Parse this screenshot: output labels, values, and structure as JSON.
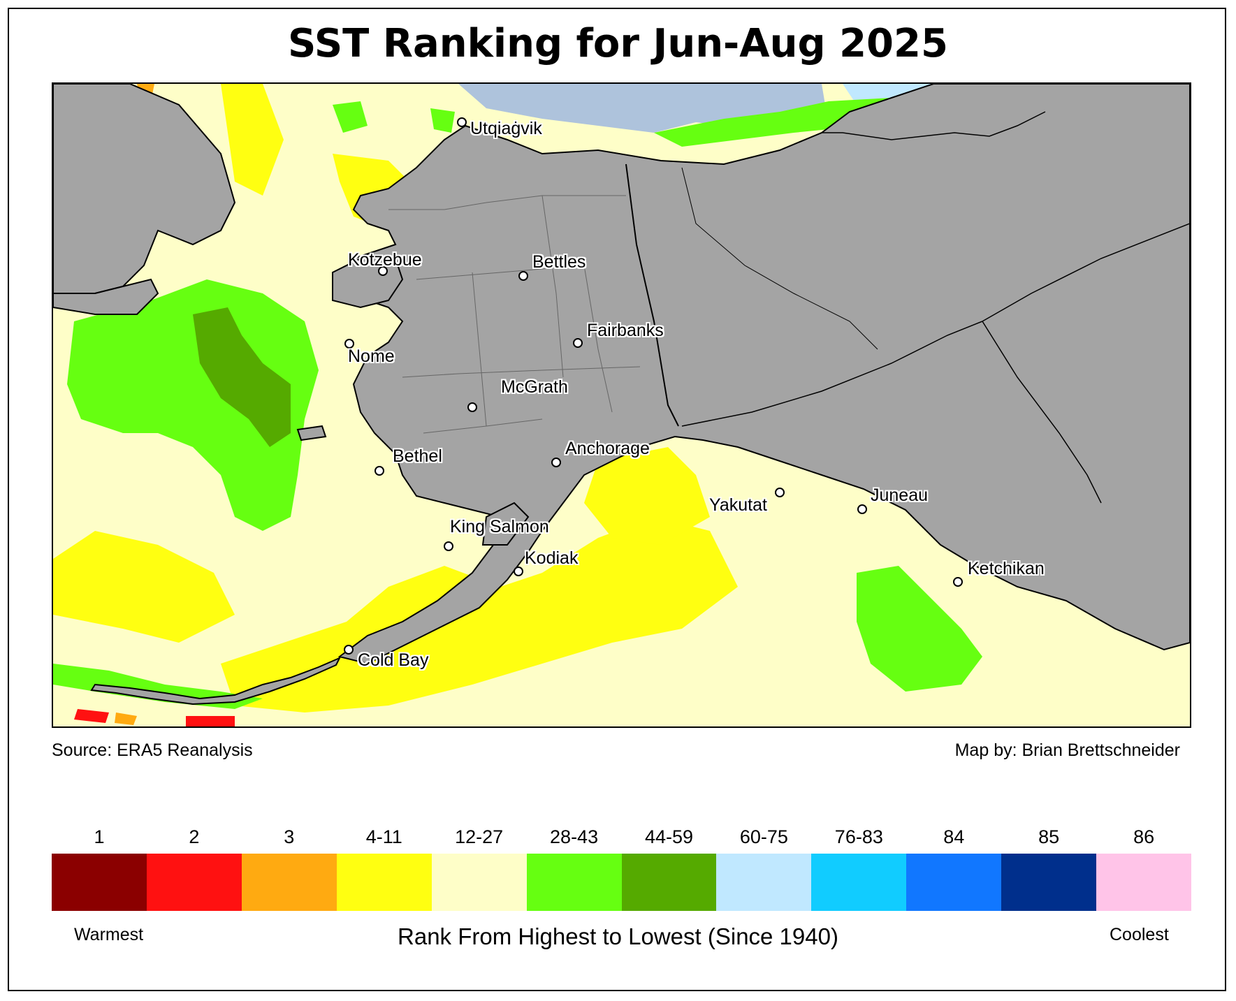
{
  "title": "SST Ranking for Jun-Aug 2025",
  "source": "Source: ERA5 Reanalysis",
  "credit": "Map by: Brian Brettschneider",
  "cities": [
    {
      "name": "Utqiaġvik"
    },
    {
      "name": "Kotzebue"
    },
    {
      "name": "Bettles"
    },
    {
      "name": "Fairbanks"
    },
    {
      "name": "Nome"
    },
    {
      "name": "McGrath"
    },
    {
      "name": "Bethel"
    },
    {
      "name": "Anchorage"
    },
    {
      "name": "Yakutat"
    },
    {
      "name": "Juneau"
    },
    {
      "name": "King Salmon"
    },
    {
      "name": "Kodiak"
    },
    {
      "name": "Ketchikan"
    },
    {
      "name": "Cold Bay"
    }
  ],
  "legend": {
    "categories": [
      {
        "label": "1",
        "color": "#8b0000"
      },
      {
        "label": "2",
        "color": "#ff1111"
      },
      {
        "label": "3",
        "color": "#ffaa11"
      },
      {
        "label": "4-11",
        "color": "#ffff11"
      },
      {
        "label": "12-27",
        "color": "#fefec8"
      },
      {
        "label": "28-43",
        "color": "#66ff11"
      },
      {
        "label": "44-59",
        "color": "#55aa00"
      },
      {
        "label": "60-75",
        "color": "#c0e8ff"
      },
      {
        "label": "76-83",
        "color": "#11ccff"
      },
      {
        "label": "84",
        "color": "#1177ff"
      },
      {
        "label": "85",
        "color": "#002f8c"
      },
      {
        "label": "86",
        "color": "#ffc4e8"
      }
    ],
    "warmest": "Warmest",
    "coolest": "Coolest",
    "axis_label": "Rank From Highest to Lowest (Since 1940)"
  },
  "colors": {
    "land": "#a4a4a4",
    "sea_ice": "#aec3dc"
  }
}
